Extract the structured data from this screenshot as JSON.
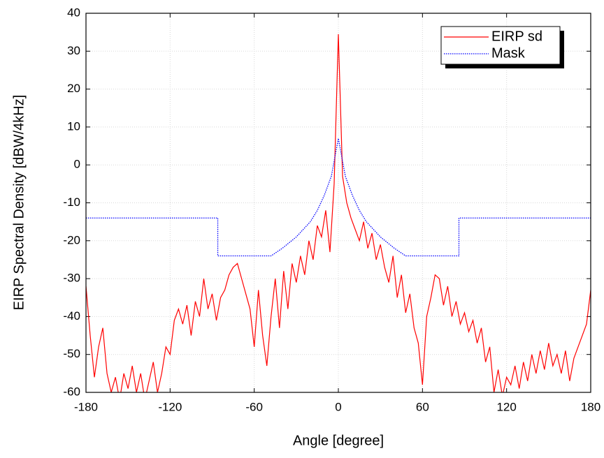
{
  "chart_data": {
    "type": "line",
    "x_label": "Angle [degree]",
    "y_label": "EIRP Spectral Density [dBW/4kHz]",
    "xlim": [
      -180,
      180
    ],
    "xticks": [
      -180,
      -120,
      -60,
      0,
      60,
      120,
      180
    ],
    "ylim": [
      -60,
      40
    ],
    "yticks": [
      -60,
      -50,
      -40,
      -30,
      -20,
      -10,
      0,
      10,
      20,
      30,
      40
    ],
    "grid": true,
    "legend": "upper right",
    "series": [
      {
        "name": "EIRP sd",
        "color": "#ff0000",
        "style": "solid",
        "x": [
          -180,
          -177,
          -174,
          -171,
          -168,
          -165,
          -162,
          -159,
          -156,
          -153,
          -150,
          -147,
          -144,
          -141,
          -138,
          -135,
          -132,
          -129,
          -126,
          -123,
          -120,
          -117,
          -114,
          -111,
          -108,
          -105,
          -102,
          -99,
          -96,
          -93,
          -90,
          -87,
          -84,
          -81,
          -78,
          -75,
          -72,
          -69,
          -66,
          -63,
          -60,
          -57,
          -54,
          -51,
          -48,
          -45,
          -42,
          -39,
          -36,
          -33,
          -30,
          -27,
          -24,
          -21,
          -18,
          -15,
          -12,
          -9,
          -6,
          -3,
          0,
          3,
          6,
          9,
          12,
          15,
          18,
          21,
          24,
          27,
          30,
          33,
          36,
          39,
          42,
          45,
          48,
          51,
          54,
          57,
          60,
          63,
          66,
          69,
          72,
          75,
          78,
          81,
          84,
          87,
          90,
          93,
          96,
          99,
          102,
          105,
          108,
          111,
          114,
          117,
          120,
          123,
          126,
          129,
          132,
          135,
          138,
          141,
          144,
          147,
          150,
          153,
          156,
          159,
          162,
          165,
          168,
          171,
          174,
          177,
          180
        ],
        "values": [
          -32,
          -45,
          -56,
          -48,
          -43,
          -55,
          -60,
          -56,
          -62,
          -55,
          -59,
          -53,
          -60,
          -55,
          -62,
          -57,
          -52,
          -60,
          -55,
          -48,
          -50,
          -41,
          -38,
          -42,
          -37,
          -45,
          -36,
          -40,
          -30,
          -38,
          -34,
          -41,
          -35,
          -33,
          -29,
          -27,
          -26,
          -30,
          -34,
          -38,
          -48,
          -33,
          -45,
          -53,
          -40,
          -30,
          -43,
          -28,
          -38,
          -26,
          -31,
          -24,
          -29,
          -20,
          -25,
          -16,
          -19,
          -12,
          -23,
          -5,
          34.5,
          -3,
          -10,
          -14,
          -17,
          -20,
          -15,
          -22,
          -18,
          -25,
          -21,
          -27,
          -31,
          -24,
          -35,
          -29,
          -39,
          -34,
          -43,
          -47,
          -58,
          -40,
          -35,
          -29,
          -30,
          -37,
          -32,
          -40,
          -36,
          -42,
          -39,
          -44,
          -41,
          -47,
          -43,
          -52,
          -48,
          -60,
          -54,
          -61,
          -56,
          -58,
          -53,
          -59,
          -52,
          -57,
          -50,
          -55,
          -49,
          -54,
          -47,
          -53,
          -50,
          -55,
          -49,
          -57,
          -51,
          -48,
          -45,
          -42,
          -33
        ]
      },
      {
        "name": "Mask",
        "color": "#0000ff",
        "style": "dotted",
        "x": [
          -180,
          -86,
          -86,
          -48,
          -40,
          -30,
          -20,
          -15,
          -10,
          -5,
          -2,
          0,
          2,
          5,
          10,
          15,
          20,
          30,
          40,
          48,
          86,
          86,
          180
        ],
        "values": [
          -14,
          -14,
          -24,
          -24,
          -22,
          -19,
          -15,
          -12,
          -8,
          -3,
          3,
          7,
          3,
          -3,
          -8,
          -12,
          -15,
          -19,
          -22,
          -24,
          -24,
          -14,
          -14
        ]
      }
    ]
  }
}
